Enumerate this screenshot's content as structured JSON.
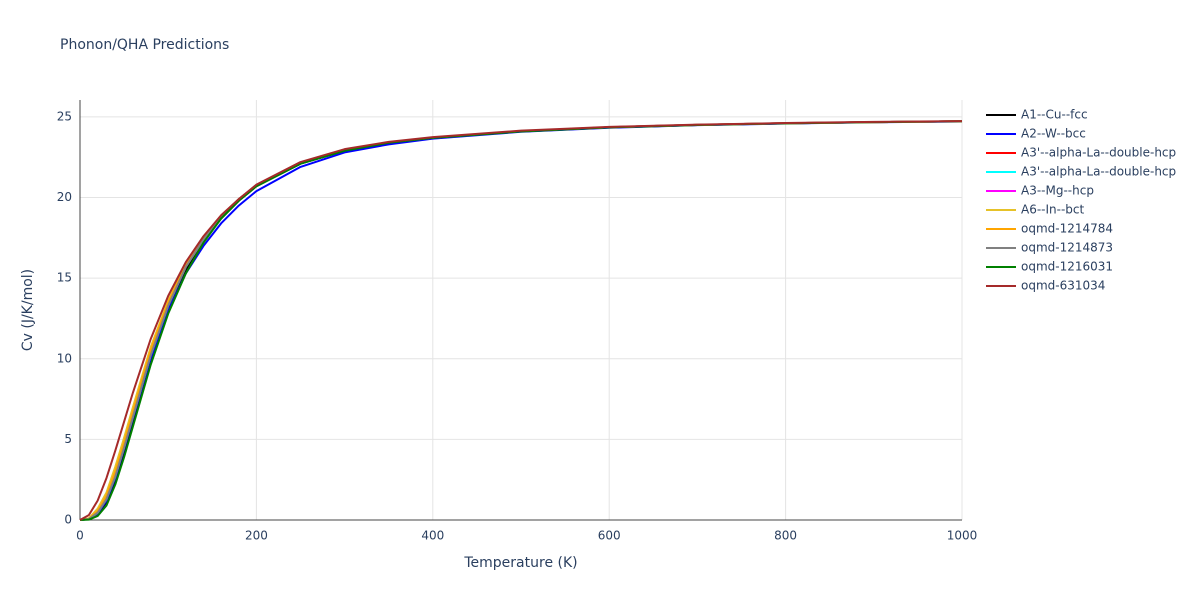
{
  "chart_data": {
    "type": "line",
    "title": "Phonon/QHA Predictions",
    "x_label": "Temperature (K)",
    "y_label": "Cv (J/K/mol)",
    "x": [
      0,
      10,
      20,
      30,
      40,
      50,
      60,
      80,
      100,
      120,
      140,
      160,
      180,
      200,
      250,
      300,
      350,
      400,
      500,
      600,
      700,
      800,
      900,
      1000
    ],
    "xlim": [
      0,
      1000
    ],
    "xticks": [
      0,
      200,
      400,
      600,
      800,
      1000
    ],
    "ylim": [
      0,
      26.05
    ],
    "yticks": [
      0,
      5,
      10,
      15,
      20,
      25
    ],
    "grid": true,
    "legend": "right",
    "series": [
      {
        "name": "A1--Cu--fcc",
        "color": "#000000",
        "values": [
          0,
          0.05,
          0.4,
          1.1,
          2.4,
          4.1,
          6.0,
          9.8,
          13.0,
          15.5,
          17.3,
          18.7,
          19.8,
          20.7,
          22.1,
          22.9,
          23.4,
          23.7,
          24.1,
          24.35,
          24.5,
          24.6,
          24.68,
          24.73
        ]
      },
      {
        "name": "A2--W--bcc",
        "color": "#0000ff",
        "values": [
          0,
          0.05,
          0.4,
          1.2,
          2.6,
          4.4,
          6.3,
          10.0,
          13.0,
          15.3,
          17.0,
          18.4,
          19.5,
          20.4,
          21.9,
          22.8,
          23.3,
          23.65,
          24.08,
          24.33,
          24.49,
          24.59,
          24.67,
          24.72
        ]
      },
      {
        "name": "A3'--alpha-La--double-hcp",
        "color": "#ff0000",
        "values": [
          0,
          0.06,
          0.45,
          1.3,
          2.7,
          4.5,
          6.4,
          10.2,
          13.3,
          15.7,
          17.4,
          18.8,
          19.9,
          20.75,
          22.15,
          22.95,
          23.42,
          23.72,
          24.12,
          24.36,
          24.51,
          24.61,
          24.68,
          24.73
        ]
      },
      {
        "name": "A3'--alpha-La--double-hcp",
        "color": "#00ffff",
        "values": [
          0,
          0.06,
          0.45,
          1.3,
          2.7,
          4.5,
          6.4,
          10.2,
          13.3,
          15.7,
          17.4,
          18.8,
          19.9,
          20.75,
          22.15,
          22.95,
          23.42,
          23.72,
          24.12,
          24.36,
          24.51,
          24.61,
          24.68,
          24.73
        ]
      },
      {
        "name": "A3--Mg--hcp",
        "color": "#ff00ff",
        "values": [
          0,
          0.07,
          0.5,
          1.4,
          2.9,
          4.7,
          6.6,
          10.4,
          13.4,
          15.8,
          17.5,
          18.85,
          19.9,
          20.75,
          22.15,
          22.95,
          23.42,
          23.72,
          24.12,
          24.36,
          24.51,
          24.61,
          24.68,
          24.73
        ]
      },
      {
        "name": "A6--In--bct",
        "color": "#e6c229",
        "values": [
          0,
          0.1,
          0.7,
          1.7,
          3.3,
          5.1,
          7.0,
          10.7,
          13.6,
          15.9,
          17.5,
          18.85,
          19.9,
          20.75,
          22.15,
          22.95,
          23.42,
          23.72,
          24.12,
          24.36,
          24.51,
          24.61,
          24.68,
          24.73
        ]
      },
      {
        "name": "oqmd-1214784",
        "color": "#ffa500",
        "values": [
          0,
          0.08,
          0.55,
          1.5,
          3.0,
          4.8,
          6.7,
          10.5,
          13.5,
          15.8,
          17.5,
          18.85,
          19.9,
          20.75,
          22.15,
          22.95,
          23.42,
          23.72,
          24.12,
          24.36,
          24.51,
          24.61,
          24.68,
          24.73
        ]
      },
      {
        "name": "oqmd-1214873",
        "color": "#808080",
        "values": [
          0,
          0.06,
          0.45,
          1.3,
          2.7,
          4.5,
          6.4,
          10.2,
          13.3,
          15.7,
          17.4,
          18.8,
          19.9,
          20.75,
          22.15,
          22.95,
          23.42,
          23.72,
          24.12,
          24.36,
          24.51,
          24.61,
          24.68,
          24.73
        ]
      },
      {
        "name": "oqmd-1216031",
        "color": "#008000",
        "values": [
          0,
          0.02,
          0.25,
          0.9,
          2.2,
          3.9,
          5.8,
          9.6,
          12.8,
          15.3,
          17.2,
          18.7,
          19.8,
          20.7,
          22.1,
          22.9,
          23.4,
          23.7,
          24.1,
          24.35,
          24.5,
          24.6,
          24.68,
          24.73
        ]
      },
      {
        "name": "oqmd-631034",
        "color": "#a52a2a",
        "values": [
          0,
          0.3,
          1.2,
          2.6,
          4.3,
          6.1,
          7.9,
          11.2,
          13.9,
          16.0,
          17.6,
          18.9,
          19.9,
          20.8,
          22.2,
          23.0,
          23.45,
          23.75,
          24.15,
          24.38,
          24.52,
          24.62,
          24.69,
          24.74
        ]
      }
    ]
  }
}
